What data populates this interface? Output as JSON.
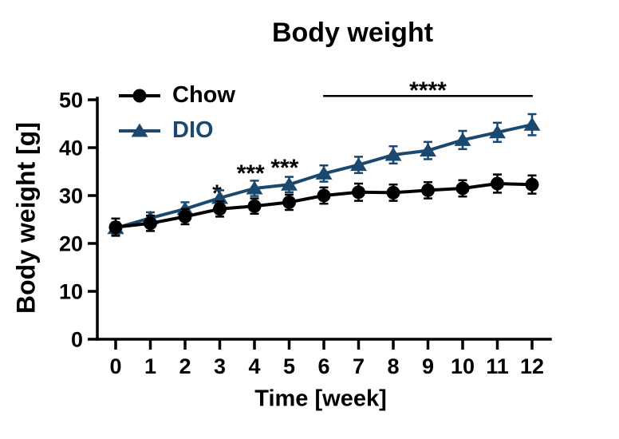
{
  "chart_data": {
    "type": "line",
    "title": "Body weight",
    "xlabel": "Time [week]",
    "ylabel": "Body weight [g]",
    "x_ticks": [
      0,
      1,
      2,
      3,
      4,
      5,
      6,
      7,
      8,
      9,
      10,
      11,
      12
    ],
    "y_ticks": [
      0,
      10,
      20,
      30,
      40,
      50
    ],
    "xlim": [
      0,
      12
    ],
    "ylim": [
      0,
      50
    ],
    "grid": false,
    "legend_position": "top-left-inside",
    "error_bars": "SEM",
    "series": [
      {
        "name": "Chow",
        "color": "#000000",
        "marker": "circle",
        "values": [
          23.4,
          24.2,
          25.6,
          27.2,
          27.8,
          28.6,
          30.0,
          30.7,
          30.6,
          31.1,
          31.5,
          32.5,
          32.3
        ],
        "sem": [
          1.8,
          1.6,
          1.6,
          1.6,
          1.6,
          1.6,
          1.7,
          1.8,
          1.7,
          1.7,
          1.7,
          1.9,
          1.9
        ]
      },
      {
        "name": "DIO",
        "color": "#1B486E",
        "marker": "triangle",
        "values": [
          23.2,
          25.3,
          27.2,
          29.5,
          31.5,
          32.3,
          34.6,
          36.4,
          38.5,
          39.4,
          41.6,
          43.2,
          44.8
        ],
        "sem": [
          1.2,
          1.2,
          1.4,
          1.6,
          1.6,
          1.6,
          1.7,
          1.7,
          1.8,
          1.8,
          1.9,
          2.0,
          2.2
        ]
      }
    ],
    "annotations": {
      "stars": [
        {
          "label": "*",
          "x_week": 2.92,
          "y_g": 28.8
        },
        {
          "label": "***",
          "x_week": 3.89,
          "y_g": 33.0
        },
        {
          "label": "***",
          "x_week": 4.87,
          "y_g": 34.2
        }
      ],
      "bracket": {
        "label": "****",
        "from_week": 5.98,
        "to_week": 12.02,
        "y_g": 50.8,
        "label_x_week": 9.0,
        "label_y_g": 50.3
      }
    }
  }
}
